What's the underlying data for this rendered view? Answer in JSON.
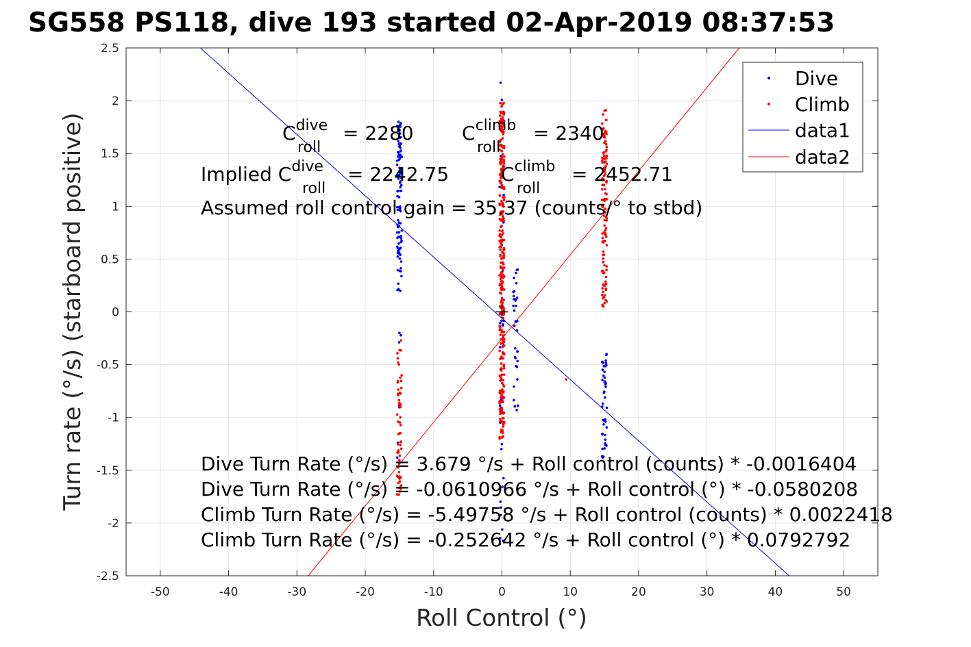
{
  "chart_data": {
    "type": "scatter",
    "title": "SG558 PS118, dive 193 started 02-Apr-2019 08:37:53",
    "xlabel": "Roll Control (°)",
    "ylabel": "Turn rate (°/s) (starboard positive)",
    "xlim": [
      -55,
      55
    ],
    "ylim": [
      -2.5,
      2.5
    ],
    "xticks": [
      -50,
      -40,
      -30,
      -20,
      -10,
      0,
      10,
      20,
      30,
      40,
      50
    ],
    "yticks": [
      -2.5,
      -2,
      -1.5,
      -1,
      -0.5,
      0,
      0.5,
      1,
      1.5,
      2,
      2.5
    ],
    "xtick_labels": [
      "-50",
      "-40",
      "-30",
      "-20",
      "-10",
      "0",
      "10",
      "20",
      "30",
      "40",
      "50"
    ],
    "ytick_labels": [
      "-2.5",
      "-2",
      "-1.5",
      "-1",
      "-0.5",
      "0",
      "0.5",
      "1",
      "1.5",
      "2",
      "2.5"
    ],
    "grid": true,
    "legend_position": "top-right",
    "legend": [
      {
        "label": "Dive",
        "color": "#0000ff",
        "kind": "marker"
      },
      {
        "label": "Climb",
        "color": "#ff0000",
        "kind": "marker"
      },
      {
        "label": "data1",
        "color": "#0000ff",
        "kind": "line"
      },
      {
        "label": "data2",
        "color": "#ff0000",
        "kind": "line"
      }
    ],
    "series": [
      {
        "name": "Dive",
        "color": "#0000ff",
        "clusters": [
          {
            "x": -15.0,
            "y_min": 0.2,
            "y_max": 1.8,
            "count": 110
          },
          {
            "x": -15.0,
            "y_min": -1.38,
            "y_max": -0.2,
            "count": 6
          },
          {
            "x": 0.0,
            "y_min": -2.2,
            "y_max": 2.17,
            "count": 40
          },
          {
            "x": 2.0,
            "y_min": -0.93,
            "y_max": 0.4,
            "count": 35
          },
          {
            "x": 15.0,
            "y_min": -1.38,
            "y_max": -0.4,
            "count": 45
          }
        ]
      },
      {
        "name": "Climb",
        "color": "#ff0000",
        "clusters": [
          {
            "x": -15.0,
            "y_min": -1.73,
            "y_max": -0.27,
            "count": 60
          },
          {
            "x": 0.0,
            "y_min": -1.2,
            "y_max": 1.98,
            "count": 320
          },
          {
            "x": 15.0,
            "y_min": 0.05,
            "y_max": 1.91,
            "count": 130
          },
          {
            "x": 9.4,
            "y_min": -0.64,
            "y_max": -0.64,
            "count": 1
          }
        ]
      }
    ],
    "fit_lines": [
      {
        "name": "data1",
        "color": "#0000ff",
        "intercept": -0.0610966,
        "slope": -0.0580208
      },
      {
        "name": "data2",
        "color": "#ff0000",
        "intercept": -0.252642,
        "slope": 0.0792792
      }
    ],
    "center_marker": {
      "x": 0,
      "y": 0,
      "symbol": "+"
    },
    "annotations": {
      "c_roll_dive": {
        "base": "C",
        "sup": "dive",
        "sub": "roll",
        "value": "= 2280"
      },
      "c_roll_climb": {
        "base": "C",
        "sup": "climb",
        "sub": "roll",
        "value": "= 2340"
      },
      "implied_dive": {
        "prefix": "Implied C",
        "sup": "dive",
        "sub": "roll",
        "value": "= 2242.75"
      },
      "implied_climb": {
        "base": "C",
        "sup": "climb",
        "sub": "roll",
        "value": "= 2452.71"
      },
      "gain": "Assumed roll control gain = 35.37 (counts/° to stbd)",
      "equations": [
        "Dive Turn Rate (°/s) = 3.679 °/s + Roll control (counts) * -0.0016404",
        "Dive Turn Rate (°/s) = -0.0610966 °/s + Roll control (°) * -0.0580208",
        "Climb Turn Rate (°/s) = -5.49758 °/s + Roll control (counts) * 0.0022418",
        "Climb Turn Rate (°/s) = -0.252642 °/s + Roll control (°) * 0.0792792"
      ]
    }
  }
}
